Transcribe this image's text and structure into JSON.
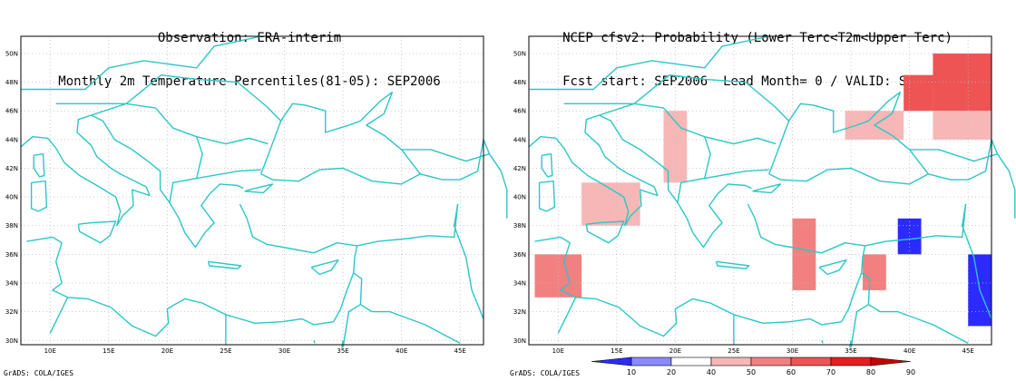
{
  "left_panel": {
    "title_line1": "Observation: ERA-interim",
    "title_line2": "Monthly 2m Temperature Percentiles(81-05): SEP2006"
  },
  "right_panel": {
    "title_line1": "NCEP cfsv2: Probability (Lower Terc<T2m<Upper Terc)",
    "title_line2": "Fcst start: SEP2006  Lead Month= 0 / VALID: SEP2006"
  },
  "footer_left": "GrADS: COLA/IGES",
  "footer_right": "GrADS: COLA/IGES",
  "map": {
    "lon_ticks": [
      "10E",
      "15E",
      "20E",
      "25E",
      "30E",
      "35E",
      "40E",
      "45E"
    ],
    "lat_ticks": [
      "30N",
      "32N",
      "34N",
      "36N",
      "38N",
      "40N",
      "42N",
      "44N",
      "46N",
      "48N",
      "50N"
    ],
    "lon_range": [
      7.5,
      47
    ],
    "lat_range": [
      29.7,
      51.2
    ]
  },
  "colorbar": {
    "labels": [
      "10",
      "20",
      "40",
      "50",
      "60",
      "70",
      "80",
      "90"
    ],
    "colors": [
      "#2b2bff",
      "#8a8aff",
      "#ffffff",
      "#f7b7b7",
      "#f28080",
      "#ee5454",
      "#e81e1e",
      "#c80000"
    ]
  },
  "colors": {
    "coast": "#2cc6c6",
    "grid": "#bbbbbb",
    "frame": "#000000"
  },
  "chart_data": {
    "type": "heatmap",
    "units": "probability (%)",
    "cells": [
      {
        "lon": [
          42,
          47
        ],
        "lat": [
          46,
          50
        ],
        "class": "60-70"
      },
      {
        "lon": [
          39.5,
          42
        ],
        "lat": [
          46,
          48.5
        ],
        "class": "60-70"
      },
      {
        "lon": [
          42,
          47
        ],
        "lat": [
          44,
          46
        ],
        "class": "40-50"
      },
      {
        "lon": [
          34.5,
          39.5
        ],
        "lat": [
          44,
          46
        ],
        "class": "40-50"
      },
      {
        "lon": [
          19,
          21
        ],
        "lat": [
          41,
          46
        ],
        "class": "40-50"
      },
      {
        "lon": [
          12,
          17
        ],
        "lat": [
          38,
          41
        ],
        "class": "40-50"
      },
      {
        "lon": [
          8,
          12
        ],
        "lat": [
          33,
          36
        ],
        "class": "50-60"
      },
      {
        "lon": [
          30,
          32
        ],
        "lat": [
          33.5,
          38.5
        ],
        "class": "50-60"
      },
      {
        "lon": [
          36,
          38
        ],
        "lat": [
          33.5,
          36
        ],
        "class": "50-60"
      },
      {
        "lon": [
          39,
          41
        ],
        "lat": [
          36,
          38.5
        ],
        "class": "10-20"
      },
      {
        "lon": [
          45,
          47
        ],
        "lat": [
          31,
          36
        ],
        "class": "10-20"
      }
    ]
  }
}
